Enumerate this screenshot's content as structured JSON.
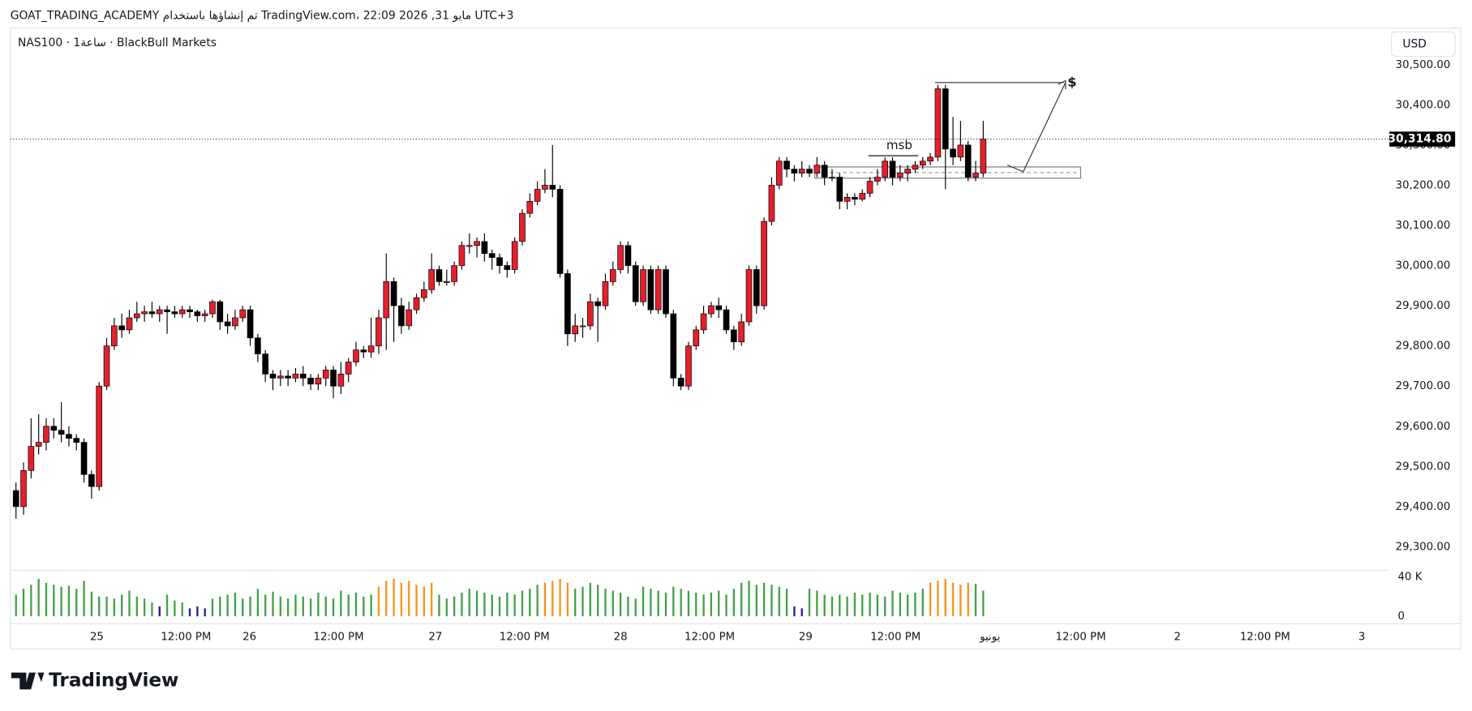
{
  "header": {
    "attribution": "GOAT_TRADING_ACADEMY تم إنشاؤها باستخدام TradingView.com، 22:09 2026 ,31 مايو UTC+3"
  },
  "footer": {
    "brand": "TradingView"
  },
  "chart_data": [
    {
      "type": "candlestick",
      "title": "NAS100 · 1ساعة · BlackBull Markets",
      "currency": "USD",
      "last_label": "30,314.80",
      "up_color": "#e3202c",
      "down_color": "#000000",
      "annotations": [
        "msb",
        "$"
      ],
      "open": [
        29440,
        29400,
        29490,
        29550,
        29560,
        29600,
        29590,
        29580,
        29570,
        29560,
        29480,
        29450,
        29700,
        29800,
        29850,
        29840,
        29870,
        29880,
        29885,
        29880,
        29890,
        29885,
        29880,
        29890,
        29885,
        29875,
        29880,
        29910,
        29860,
        29850,
        29870,
        29890,
        29820,
        29780,
        29730,
        29720,
        29725,
        29720,
        29730,
        29720,
        29705,
        29720,
        29740,
        29700,
        29730,
        29760,
        29790,
        29785,
        29800,
        29870,
        29960,
        29900,
        29850,
        29890,
        29920,
        29940,
        29990,
        29960,
        29960,
        30000,
        30050,
        30050,
        30060,
        30030,
        30020,
        30000,
        29990,
        30060,
        30130,
        30160,
        30190,
        30200,
        30190,
        29980,
        29830,
        29850,
        29850,
        29910,
        29900,
        29960,
        29990,
        30050,
        30000,
        29910,
        29990,
        29890,
        29990,
        29880,
        29720,
        29700,
        29800,
        29840,
        29880,
        29900,
        29890,
        29840,
        29810,
        29860,
        29990,
        29900,
        30110,
        30200,
        30260,
        30240,
        30230,
        30240,
        30230,
        30250,
        30220,
        30220,
        30160,
        30170,
        30165,
        30180,
        30210,
        30220,
        30260,
        30220,
        30230,
        30240,
        30250,
        30260,
        30270,
        30440,
        30290,
        30270,
        30300,
        30220,
        30230
      ],
      "high": [
        29460,
        29510,
        29620,
        29630,
        29620,
        29620,
        29660,
        29600,
        29580,
        29570,
        29490,
        29710,
        29820,
        29870,
        29880,
        29890,
        29910,
        29900,
        29910,
        29900,
        29900,
        29900,
        29900,
        29900,
        29890,
        29890,
        29915,
        29915,
        29880,
        29890,
        29900,
        29900,
        29830,
        29790,
        29740,
        29740,
        29740,
        29745,
        29750,
        29730,
        29730,
        29750,
        29750,
        29760,
        29770,
        29810,
        29800,
        29870,
        29890,
        30030,
        29970,
        29920,
        29910,
        29930,
        29960,
        30030,
        30000,
        29990,
        30010,
        30060,
        30080,
        30070,
        30080,
        30040,
        30030,
        30010,
        30070,
        30140,
        30180,
        30210,
        30240,
        30300,
        30200,
        29990,
        29880,
        29870,
        29930,
        29920,
        29980,
        30010,
        30060,
        30060,
        30010,
        30000,
        30000,
        30000,
        30000,
        29890,
        29730,
        29810,
        29850,
        29900,
        29910,
        29920,
        29900,
        29850,
        29880,
        30000,
        30000,
        30120,
        30220,
        30270,
        30270,
        30250,
        30260,
        30250,
        30270,
        30260,
        30240,
        30230,
        30180,
        30180,
        30190,
        30220,
        30240,
        30270,
        30270,
        30250,
        30250,
        30260,
        30270,
        30280,
        30450,
        30450,
        30370,
        30360,
        30310,
        30260,
        30360
      ],
      "low": [
        29370,
        29380,
        29470,
        29530,
        29540,
        29570,
        29560,
        29550,
        29540,
        29460,
        29420,
        29440,
        29690,
        29790,
        29820,
        29830,
        29860,
        29860,
        29870,
        29860,
        29830,
        29870,
        29870,
        29870,
        29860,
        29860,
        29870,
        29840,
        29830,
        29840,
        29860,
        29800,
        29760,
        29710,
        29690,
        29700,
        29700,
        29710,
        29700,
        29690,
        29690,
        29700,
        29670,
        29680,
        29710,
        29750,
        29770,
        29770,
        29780,
        29790,
        29810,
        29830,
        29840,
        29880,
        29910,
        29930,
        29950,
        29950,
        29950,
        29990,
        30030,
        30020,
        30010,
        29990,
        29980,
        29970,
        29980,
        30050,
        30120,
        30150,
        30180,
        30170,
        29970,
        29800,
        29810,
        29820,
        29840,
        29810,
        29890,
        29950,
        29980,
        29980,
        29900,
        29900,
        29880,
        29880,
        29870,
        29700,
        29690,
        29690,
        29790,
        29830,
        29870,
        29870,
        29830,
        29790,
        29800,
        29850,
        29880,
        29890,
        30100,
        30190,
        30220,
        30210,
        30220,
        30220,
        30220,
        30200,
        30210,
        30140,
        30140,
        30150,
        30160,
        30170,
        30200,
        30210,
        30200,
        30210,
        30210,
        30230,
        30240,
        30250,
        30260,
        30190,
        30250,
        30260,
        30210,
        30210,
        30220
      ],
      "close": [
        29400,
        29490,
        29550,
        29560,
        29600,
        29590,
        29580,
        29570,
        29560,
        29480,
        29450,
        29700,
        29800,
        29850,
        29840,
        29870,
        29880,
        29885,
        29880,
        29890,
        29885,
        29880,
        29890,
        29885,
        29875,
        29880,
        29910,
        29860,
        29850,
        29870,
        29890,
        29820,
        29780,
        29730,
        29720,
        29725,
        29720,
        29730,
        29720,
        29705,
        29720,
        29740,
        29700,
        29730,
        29760,
        29790,
        29785,
        29800,
        29870,
        29960,
        29900,
        29850,
        29890,
        29920,
        29940,
        29990,
        29960,
        29960,
        30000,
        30050,
        30050,
        30060,
        30030,
        30020,
        30000,
        29990,
        30060,
        30130,
        30160,
        30190,
        30200,
        30190,
        29980,
        29830,
        29850,
        29850,
        29910,
        29900,
        29960,
        29990,
        30050,
        30000,
        29910,
        29990,
        29890,
        29990,
        29880,
        29720,
        29700,
        29800,
        29840,
        29880,
        29900,
        29890,
        29840,
        29810,
        29860,
        29990,
        29900,
        30110,
        30200,
        30260,
        30240,
        30230,
        30240,
        30230,
        30250,
        30220,
        30220,
        30160,
        30170,
        30165,
        30180,
        30210,
        30220,
        30260,
        30220,
        30230,
        30240,
        30250,
        30260,
        30270,
        30440,
        30290,
        30270,
        30300,
        30220,
        30230,
        30314.8
      ],
      "xlim": [
        -0.75,
        181.75
      ],
      "xticks": [
        {
          "value": 10.7,
          "label": "25"
        },
        {
          "value": 22.5,
          "label": "12:00 PM"
        },
        {
          "value": 30.9,
          "label": "26"
        },
        {
          "value": 42.7,
          "label": "12:00 PM"
        },
        {
          "value": 55.5,
          "label": "27"
        },
        {
          "value": 67.3,
          "label": "12:00 PM"
        },
        {
          "value": 80,
          "label": "28"
        },
        {
          "value": 91.8,
          "label": "12:00 PM"
        },
        {
          "value": 104.5,
          "label": "29"
        },
        {
          "value": 116.4,
          "label": "12:00 PM"
        },
        {
          "value": 128.9,
          "label": "يونيو"
        },
        {
          "value": 140.9,
          "label": "12:00 PM"
        },
        {
          "value": 153.7,
          "label": "2"
        },
        {
          "value": 165.3,
          "label": "12:00 PM"
        },
        {
          "value": 178.1,
          "label": "3"
        }
      ],
      "ylim": [
        29241.5,
        30591
      ],
      "yticks": [
        {
          "value": 29300,
          "label": "29,300.00"
        },
        {
          "value": 29400,
          "label": "29,400.00"
        },
        {
          "value": 29500,
          "label": "29,500.00"
        },
        {
          "value": 29600,
          "label": "29,600.00"
        },
        {
          "value": 29700,
          "label": "29,700.00"
        },
        {
          "value": 29800,
          "label": "29,800.00"
        },
        {
          "value": 29900,
          "label": "29,900.00"
        },
        {
          "value": 30000,
          "label": "30,000.00"
        },
        {
          "value": 30100,
          "label": "30,100.00"
        },
        {
          "value": 30200,
          "label": "30,200.00"
        },
        {
          "value": 30300,
          "label": "30,300.00"
        },
        {
          "value": 30400,
          "label": "30,400.00"
        },
        {
          "value": 30500,
          "label": "30,500.00"
        }
      ]
    },
    {
      "type": "bar",
      "values": [
        22000,
        28000,
        32000,
        38000,
        34000,
        32000,
        30000,
        31000,
        28000,
        36000,
        25000,
        20000,
        20000,
        18000,
        22000,
        26000,
        20000,
        18000,
        14000,
        10000,
        22000,
        16000,
        14000,
        8000,
        10000,
        8000,
        18000,
        20000,
        22000,
        24000,
        18000,
        20000,
        28000,
        22000,
        25000,
        20000,
        18000,
        22000,
        20000,
        18000,
        24000,
        20000,
        18000,
        26000,
        22000,
        24000,
        20000,
        22000,
        30000,
        36000,
        38000,
        34000,
        36000,
        32000,
        30000,
        34000,
        22000,
        18000,
        20000,
        24000,
        28000,
        26000,
        24000,
        22000,
        20000,
        24000,
        22000,
        26000,
        28000,
        32000,
        34000,
        36000,
        38000,
        34000,
        28000,
        30000,
        34000,
        32000,
        28000,
        26000,
        24000,
        20000,
        18000,
        30000,
        28000,
        26000,
        24000,
        30000,
        28000,
        26000,
        24000,
        22000,
        24000,
        26000,
        22000,
        28000,
        34000,
        36000,
        32000,
        34000,
        32000,
        30000,
        28000,
        10000,
        8000,
        28000,
        26000,
        22000,
        20000,
        22000,
        20000,
        24000,
        22000,
        24000,
        22000,
        20000,
        26000,
        24000,
        22000,
        24000,
        28000,
        34000,
        36000,
        38000,
        34000,
        32000,
        34000,
        33000,
        26000
      ],
      "colors": [
        "#43a047",
        "#43a047",
        "#43a047",
        "#43a047",
        "#43a047",
        "#43a047",
        "#43a047",
        "#43a047",
        "#43a047",
        "#43a047",
        "#43a047",
        "#43a047",
        "#43a047",
        "#43a047",
        "#43a047",
        "#43a047",
        "#43a047",
        "#43a047",
        "#43a047",
        "#1f1f9e",
        "#43a047",
        "#43a047",
        "#43a047",
        "#1f1f9e",
        "#1f1f9e",
        "#1f1f9e",
        "#43a047",
        "#43a047",
        "#43a047",
        "#43a047",
        "#43a047",
        "#43a047",
        "#43a047",
        "#43a047",
        "#43a047",
        "#43a047",
        "#43a047",
        "#43a047",
        "#43a047",
        "#43a047",
        "#43a047",
        "#43a047",
        "#43a047",
        "#43a047",
        "#43a047",
        "#43a047",
        "#43a047",
        "#43a047",
        "#f7931a",
        "#f7931a",
        "#f7931a",
        "#f7931a",
        "#f7931a",
        "#f7931a",
        "#f7931a",
        "#f7931a",
        "#43a047",
        "#43a047",
        "#43a047",
        "#43a047",
        "#43a047",
        "#43a047",
        "#43a047",
        "#43a047",
        "#43a047",
        "#43a047",
        "#43a047",
        "#43a047",
        "#43a047",
        "#43a047",
        "#f7931a",
        "#f7931a",
        "#f7931a",
        "#f7931a",
        "#43a047",
        "#43a047",
        "#43a047",
        "#43a047",
        "#43a047",
        "#43a047",
        "#43a047",
        "#43a047",
        "#43a047",
        "#43a047",
        "#43a047",
        "#43a047",
        "#43a047",
        "#43a047",
        "#43a047",
        "#43a047",
        "#43a047",
        "#43a047",
        "#43a047",
        "#43a047",
        "#43a047",
        "#43a047",
        "#43a047",
        "#43a047",
        "#43a047",
        "#43a047",
        "#43a047",
        "#43a047",
        "#43a047",
        "#1f1f9e",
        "#1f1f9e",
        "#43a047",
        "#43a047",
        "#43a047",
        "#43a047",
        "#43a047",
        "#43a047",
        "#43a047",
        "#43a047",
        "#43a047",
        "#43a047",
        "#43a047",
        "#43a047",
        "#43a047",
        "#43a047",
        "#43a047",
        "#43a047",
        "#f7931a",
        "#f7931a",
        "#f7931a",
        "#f7931a",
        "#f7931a",
        "#f7931a",
        "#43a047",
        "#43a047"
      ],
      "ylim": [
        0,
        44800
      ],
      "yticks": [
        {
          "value": 40000,
          "label": "40 K"
        },
        0
      ]
    }
  ]
}
